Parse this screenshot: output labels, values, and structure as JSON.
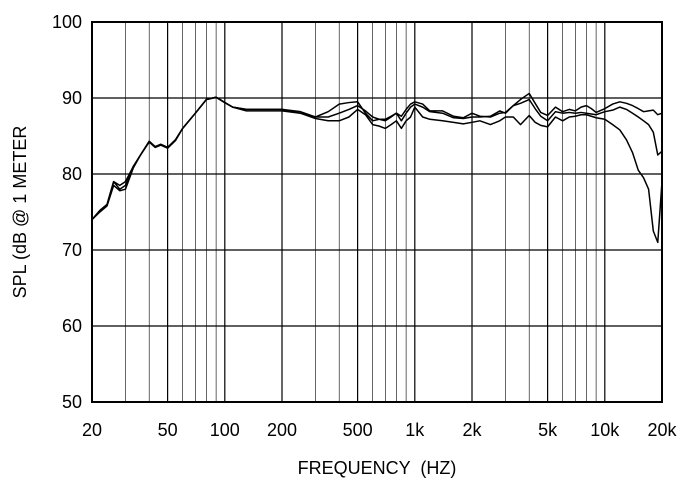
{
  "chart_data": {
    "type": "line",
    "title": "",
    "xlabel": "FREQUENCY  (HZ)",
    "ylabel": "SPL (dB @ 1 METER",
    "x_scale": "log",
    "xlim": [
      20,
      20000
    ],
    "ylim": [
      50,
      100
    ],
    "grid": true,
    "x_major_ticks": [
      {
        "value": 20,
        "label": "20"
      },
      {
        "value": 50,
        "label": "50"
      },
      {
        "value": 100,
        "label": "100"
      },
      {
        "value": 200,
        "label": "200"
      },
      {
        "value": 500,
        "label": "500"
      },
      {
        "value": 1000,
        "label": "1k"
      },
      {
        "value": 2000,
        "label": "2k"
      },
      {
        "value": 5000,
        "label": "5k"
      },
      {
        "value": 10000,
        "label": "10k"
      },
      {
        "value": 20000,
        "label": "20k"
      }
    ],
    "y_ticks": [
      {
        "value": 50,
        "label": "50"
      },
      {
        "value": 60,
        "label": "60"
      },
      {
        "value": 70,
        "label": "70"
      },
      {
        "value": 80,
        "label": "80"
      },
      {
        "value": 90,
        "label": "90"
      },
      {
        "value": 100,
        "label": "100"
      }
    ],
    "series": [
      {
        "x": [
          20,
          22,
          24,
          26,
          28,
          30,
          33,
          36,
          40,
          43,
          46,
          50,
          55,
          60,
          70,
          80,
          90,
          100,
          110,
          130,
          150,
          200,
          250,
          300,
          350,
          400,
          450,
          500,
          550,
          600,
          650,
          700,
          750,
          800,
          850,
          900,
          950,
          1000,
          1100,
          1200,
          1400,
          1600,
          1800,
          2000,
          2200,
          2500,
          2800,
          3000,
          3300,
          3600,
          4000,
          4300,
          4600,
          5000,
          5500,
          6000,
          6500,
          7000,
          7500,
          8000,
          8500,
          9000,
          10000,
          11000,
          12000,
          13000,
          14000,
          15000,
          16000,
          17000,
          18000,
          19000,
          20000
        ],
        "values": [
          74,
          75.2,
          76,
          79,
          78.5,
          79,
          81,
          82.5,
          84.3,
          83.6,
          83.9,
          83.5,
          84.5,
          86,
          88,
          89.8,
          90.1,
          89.4,
          88.8,
          88.5,
          88.5,
          88.5,
          88,
          87.5,
          88.2,
          89.2,
          89.4,
          89.5,
          88,
          87,
          87.2,
          87.2,
          87.6,
          88,
          87.6,
          88.5,
          89.2,
          89.5,
          89.2,
          88.3,
          88.3,
          87.6,
          87.4,
          88,
          87.6,
          87.5,
          88,
          88.1,
          89,
          89.8,
          90.6,
          89.3,
          88.1,
          87.7,
          88.8,
          88.2,
          88.5,
          88.3,
          88.8,
          89,
          88.6,
          88.1,
          88.6,
          89.2,
          89.5,
          89.3,
          89,
          88.6,
          88.2,
          88.3,
          88.4,
          87.8,
          88
        ]
      },
      {
        "x": [
          20,
          22,
          24,
          26,
          28,
          30,
          33,
          36,
          40,
          43,
          46,
          50,
          55,
          60,
          70,
          80,
          90,
          100,
          110,
          130,
          150,
          200,
          250,
          300,
          350,
          400,
          450,
          500,
          550,
          600,
          650,
          700,
          750,
          800,
          850,
          900,
          950,
          1000,
          1100,
          1200,
          1400,
          1600,
          1800,
          2000,
          2200,
          2500,
          2800,
          3000,
          3300,
          3600,
          4000,
          4300,
          4600,
          5000,
          5500,
          6000,
          6500,
          7000,
          7500,
          8000,
          8500,
          9000,
          10000,
          11000,
          12000,
          13000,
          14000,
          15000,
          16000,
          17000,
          18000,
          19000,
          20000
        ],
        "values": [
          74,
          75.2,
          76,
          79,
          78,
          78.5,
          81,
          82.5,
          84.3,
          83.6,
          83.9,
          83.5,
          84.5,
          86,
          88,
          89.8,
          90.1,
          89.4,
          88.8,
          88.5,
          88.5,
          88.5,
          88.2,
          87.5,
          87.5,
          88,
          88.5,
          89,
          88.3,
          87.5,
          87.2,
          87,
          87.5,
          88,
          87,
          88,
          88.8,
          89.2,
          88.8,
          88.2,
          88,
          87.4,
          87.3,
          87.5,
          87.5,
          87.6,
          88.3,
          88,
          89,
          89.3,
          89.8,
          88.6,
          87.6,
          87,
          88.2,
          88,
          88.1,
          88,
          88.1,
          88,
          87.9,
          87.8,
          88.2,
          88.4,
          88.8,
          88.5,
          88,
          87.5,
          87,
          86.5,
          85.5,
          82.5,
          83
        ]
      },
      {
        "x": [
          20,
          22,
          24,
          26,
          28,
          30,
          33,
          36,
          40,
          43,
          46,
          50,
          55,
          60,
          70,
          80,
          90,
          100,
          110,
          130,
          150,
          200,
          250,
          300,
          350,
          400,
          450,
          500,
          550,
          600,
          650,
          700,
          750,
          800,
          850,
          900,
          950,
          1000,
          1100,
          1200,
          1400,
          1600,
          1800,
          2000,
          2200,
          2500,
          2800,
          3000,
          3300,
          3600,
          4000,
          4300,
          4600,
          5000,
          5500,
          6000,
          6500,
          7000,
          7500,
          8000,
          8500,
          9000,
          10000,
          11000,
          12000,
          13000,
          14000,
          15000,
          16000,
          17000,
          18000,
          19000,
          20000
        ],
        "values": [
          74,
          75,
          75.8,
          78.5,
          77.8,
          78,
          80.8,
          82.5,
          84.2,
          83.5,
          83.8,
          83.4,
          84.4,
          86,
          88,
          89.8,
          90.1,
          89.4,
          88.8,
          88.3,
          88.3,
          88.3,
          88,
          87.3,
          87,
          87,
          87.5,
          88.5,
          87.8,
          86.5,
          86.3,
          86,
          86.5,
          87,
          86,
          87,
          87.5,
          88.8,
          87.5,
          87.2,
          87,
          86.8,
          86.6,
          86.8,
          87,
          86.5,
          87,
          87.5,
          87.5,
          86.5,
          87.7,
          86.8,
          86.4,
          86.2,
          87.5,
          87,
          87.5,
          87.6,
          87.8,
          87.8,
          87.6,
          87.4,
          87.2,
          86.5,
          85.8,
          84.5,
          82.8,
          80.5,
          79.5,
          78,
          72.5,
          71,
          79
        ]
      }
    ]
  }
}
